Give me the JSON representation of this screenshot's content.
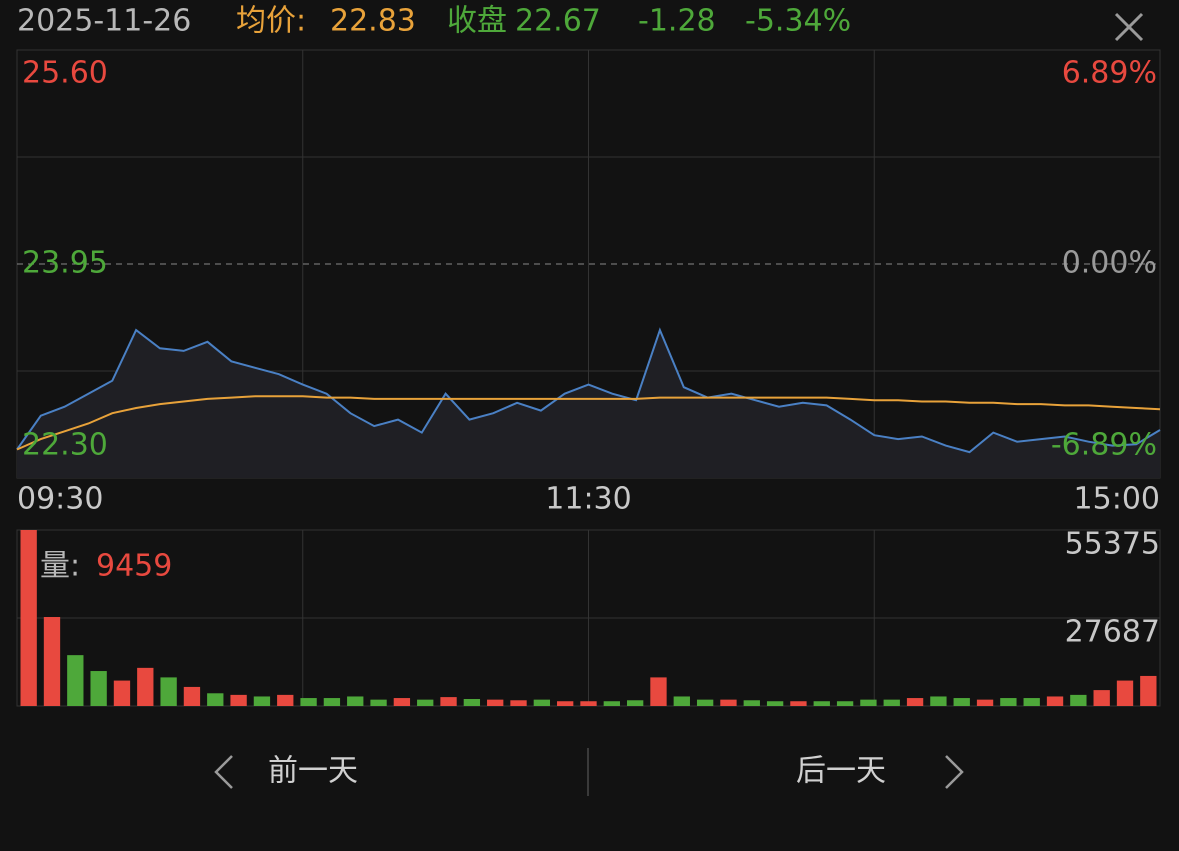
{
  "header": {
    "date": "2025-11-26",
    "avg_label": "均价:",
    "avg": "22.83",
    "close_label": "收盘",
    "close": "22.67",
    "change": "-1.28",
    "change_pct": "-5.34%"
  },
  "nav": {
    "prev": "前一天",
    "next": "后一天"
  },
  "chart_data": [
    {
      "type": "line",
      "categories": [
        "09:30",
        null,
        null,
        null,
        null,
        null,
        null,
        null,
        null,
        null,
        null,
        null,
        null,
        null,
        null,
        null,
        null,
        null,
        null,
        null,
        null,
        null,
        null,
        null,
        "11:30",
        null,
        null,
        null,
        null,
        null,
        null,
        null,
        null,
        null,
        null,
        null,
        null,
        null,
        null,
        null,
        null,
        null,
        null,
        null,
        null,
        null,
        null,
        null,
        "15:00"
      ],
      "series": [
        {
          "color": "#4a80c4",
          "values": [
            22.52,
            22.78,
            22.85,
            22.95,
            23.05,
            23.44,
            23.3,
            23.28,
            23.35,
            23.2,
            23.15,
            23.1,
            23.02,
            22.95,
            22.8,
            22.7,
            22.75,
            22.65,
            22.95,
            22.75,
            22.8,
            22.88,
            22.82,
            22.95,
            23.02,
            22.95,
            22.9,
            23.44,
            23.0,
            22.92,
            22.95,
            22.9,
            22.85,
            22.88,
            22.86,
            22.75,
            22.63,
            22.6,
            22.62,
            22.55,
            22.5,
            22.65,
            22.58,
            22.6,
            22.62,
            22.58,
            22.55,
            22.56,
            22.67
          ]
        },
        {
          "color": "#e8a23a",
          "values": [
            22.52,
            22.6,
            22.66,
            22.72,
            22.8,
            22.84,
            22.87,
            22.89,
            22.91,
            22.92,
            22.93,
            22.93,
            22.93,
            22.92,
            22.92,
            22.91,
            22.91,
            22.91,
            22.91,
            22.91,
            22.91,
            22.91,
            22.91,
            22.91,
            22.91,
            22.91,
            22.91,
            22.92,
            22.92,
            22.92,
            22.92,
            22.92,
            22.92,
            22.92,
            22.92,
            22.91,
            22.9,
            22.9,
            22.89,
            22.89,
            22.88,
            22.88,
            22.87,
            22.87,
            22.86,
            22.86,
            22.85,
            22.84,
            22.83
          ]
        }
      ],
      "ylim": [
        22.3,
        25.6
      ],
      "yticks": [
        {
          "value": 25.6,
          "label": "25.60"
        },
        {
          "value": 23.95,
          "label": "23.95"
        },
        {
          "value": 22.3,
          "label": "22.30"
        }
      ],
      "y2lim": [
        -6.89,
        6.89
      ],
      "y2ticks": [
        {
          "value": 6.89,
          "label": "6.89%"
        },
        {
          "value": 0,
          "label": "0.00%"
        },
        {
          "value": -6.89,
          "label": "-6.89%"
        }
      ],
      "grid": true,
      "up_color": "#e8493f",
      "down_color": "#4ea83a",
      "flat_color": "#9a9a9a"
    },
    {
      "type": "bar",
      "label": "量:",
      "values": [
        55375,
        28000,
        16000,
        11000,
        8000,
        12000,
        9000,
        6000,
        4000,
        3500,
        3000,
        3500,
        2500,
        2500,
        3000,
        2000,
        2500,
        2000,
        2800,
        2200,
        2000,
        1800,
        2000,
        1500,
        1500,
        1500,
        1800,
        9000,
        3000,
        2000,
        2000,
        1800,
        1500,
        1500,
        1500,
        1500,
        2000,
        2000,
        2500,
        3000,
        2500,
        2000,
        2500,
        2500,
        3000,
        3500,
        5000,
        8000,
        9459
      ],
      "colors": [
        "#e8493f",
        "#e8493f",
        "#4ea83a",
        "#4ea83a",
        "#e8493f",
        "#e8493f",
        "#4ea83a",
        "#e8493f",
        "#4ea83a",
        "#e8493f",
        "#4ea83a",
        "#e8493f",
        "#4ea83a",
        "#4ea83a",
        "#4ea83a",
        "#4ea83a",
        "#e8493f",
        "#4ea83a",
        "#e8493f",
        "#4ea83a",
        "#e8493f",
        "#e8493f",
        "#4ea83a",
        "#e8493f",
        "#e8493f",
        "#4ea83a",
        "#4ea83a",
        "#e8493f",
        "#4ea83a",
        "#4ea83a",
        "#e8493f",
        "#4ea83a",
        "#4ea83a",
        "#e8493f",
        "#4ea83a",
        "#4ea83a",
        "#4ea83a",
        "#4ea83a",
        "#e8493f",
        "#4ea83a",
        "#4ea83a",
        "#e8493f",
        "#4ea83a",
        "#4ea83a",
        "#e8493f",
        "#4ea83a",
        "#e8493f",
        "#e8493f",
        "#e8493f"
      ],
      "ylim": [
        0,
        55375
      ],
      "yticks": [
        55375,
        27687
      ]
    }
  ]
}
